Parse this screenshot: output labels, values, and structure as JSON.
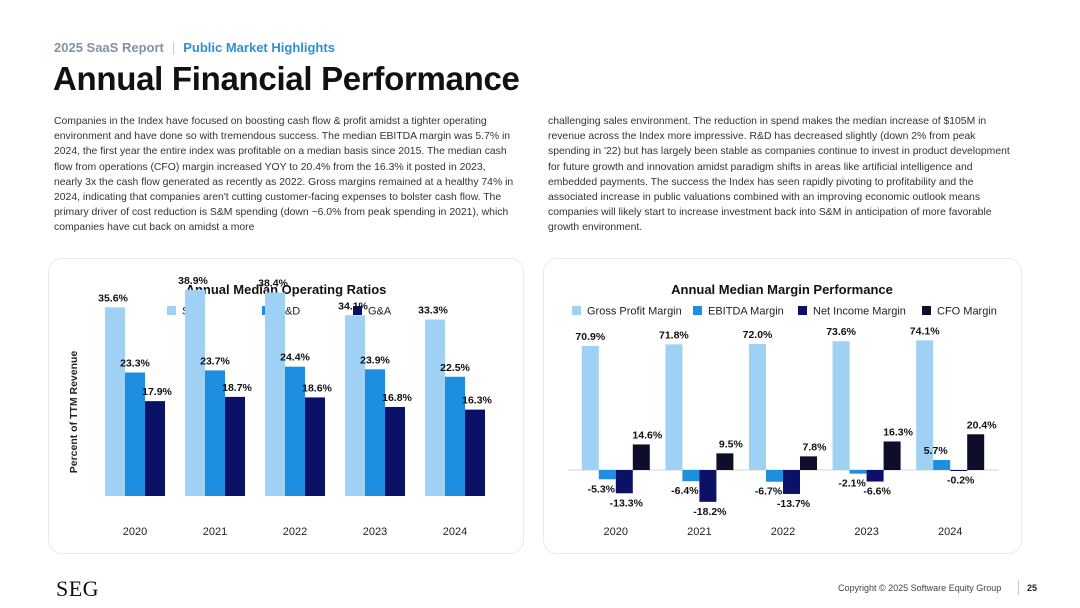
{
  "header": {
    "report": "2025 SaaS Report",
    "section": "Public Market Highlights",
    "title": "Annual Financial Performance"
  },
  "body": {
    "left_paragraph": "Companies in the Index have focused on boosting cash flow & profit amidst a tighter operating environment and have done so with tremendous success. The median EBITDA margin was 5.7% in 2024, the first year the entire index was profitable on a median basis since 2015. The median cash flow from operations (CFO) margin increased YOY to 20.4% from the 16.3% it posted in 2023, nearly 3x the cash flow generated as recently as 2022. Gross margins remained at a healthy 74% in 2024, indicating that companies aren't cutting customer-facing expenses to bolster cash flow. The primary driver of cost reduction is S&M spending (down ~6.0% from peak spending in 2021), which companies have cut back on amidst a more",
    "right_paragraph": "challenging sales environment. The reduction in spend makes the median increase of $105M in revenue across the Index more impressive. R&D has decreased slightly (down 2% from peak spending in '22) but has largely been stable as companies continue to invest in product development for future growth and innovation amidst paradigm shifts in areas like artificial intelligence and embedded payments. The success the Index has seen rapidly pivoting to profitability and the associated increase in public valuations combined with an improving economic outlook means companies will likely start to increase investment back into S&M in anticipation of more favorable growth environment."
  },
  "chart_data": [
    {
      "type": "bar",
      "title": "Annual Median Operating Ratios",
      "ylabel": "Percent of TTM Revenue",
      "xlabel": "",
      "categories": [
        "2020",
        "2021",
        "2022",
        "2023",
        "2024"
      ],
      "ylim": [
        0,
        40
      ],
      "grid": false,
      "legend": "top",
      "series": [
        {
          "name": "S&M",
          "color": "#9fd1f5",
          "values": [
            35.6,
            38.9,
            38.4,
            34.1,
            33.3
          ],
          "labels": [
            "35.6%",
            "38.9%",
            "38.4%",
            "34.1%",
            "33.3%"
          ]
        },
        {
          "name": "R&D",
          "color": "#1e8ee0",
          "values": [
            23.3,
            23.7,
            24.4,
            23.9,
            22.5
          ],
          "labels": [
            "23.3%",
            "23.7%",
            "24.4%",
            "23.9%",
            "22.5%"
          ]
        },
        {
          "name": "G&A",
          "color": "#0c1168",
          "values": [
            17.9,
            18.7,
            18.6,
            16.8,
            16.3
          ],
          "labels": [
            "17.9%",
            "18.7%",
            "18.6%",
            "16.8%",
            "16.3%"
          ]
        }
      ]
    },
    {
      "type": "bar",
      "title": "Annual Median Margin Performance",
      "ylabel": "",
      "xlabel": "",
      "categories": [
        "2020",
        "2021",
        "2022",
        "2023",
        "2024"
      ],
      "ylim": [
        -20,
        80
      ],
      "grid": false,
      "legend": "top",
      "series": [
        {
          "name": "Gross Profit Margin",
          "color": "#9fd1f5",
          "values": [
            70.9,
            71.8,
            72.0,
            73.6,
            74.1
          ],
          "labels": [
            "70.9%",
            "71.8%",
            "72.0%",
            "73.6%",
            "74.1%"
          ]
        },
        {
          "name": "EBITDA Margin",
          "color": "#1e8ee0",
          "values": [
            -5.3,
            -6.4,
            -6.7,
            -2.1,
            5.7
          ],
          "labels": [
            "-5.3%",
            "-6.4%",
            "-6.7%",
            "-2.1%",
            "5.7%"
          ]
        },
        {
          "name": "Net Income Margin",
          "color": "#0c1168",
          "values": [
            -13.3,
            -18.2,
            -13.7,
            -6.6,
            -0.2
          ],
          "labels": [
            "-13.3%",
            "-18.2%",
            "-13.7%",
            "-6.6%",
            "-0.2%"
          ]
        },
        {
          "name": "CFO Margin",
          "color": "#0d0f2a",
          "values": [
            14.6,
            9.5,
            7.8,
            16.3,
            20.4
          ],
          "labels": [
            "14.6%",
            "9.5%",
            "7.8%",
            "16.3%",
            "20.4%"
          ]
        }
      ]
    }
  ],
  "footer": {
    "logo": "SEG",
    "copyright": "Copyright © 2025 Software Equity Group",
    "page_number": "25"
  }
}
